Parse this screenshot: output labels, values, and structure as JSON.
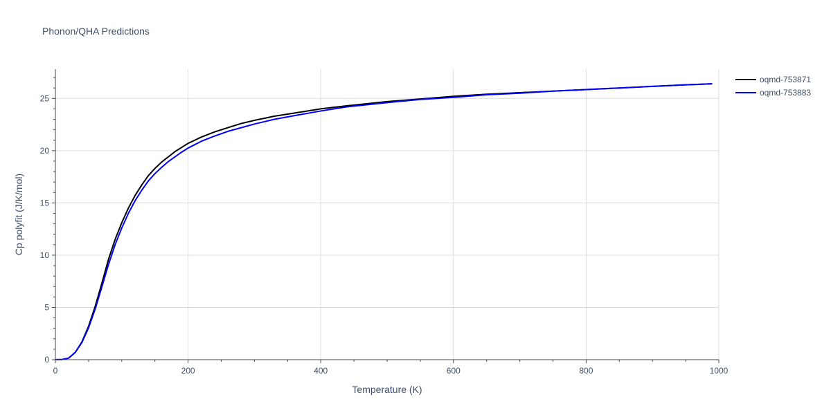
{
  "chart_data": {
    "type": "line",
    "title": "Phonon/QHA Predictions",
    "xlabel": "Temperature (K)",
    "ylabel": "Cp polyfit (J/K/mol)",
    "xlim": [
      0,
      1000
    ],
    "ylim": [
      0,
      27.8
    ],
    "xticks": [
      0,
      200,
      400,
      600,
      800,
      1000
    ],
    "yticks": [
      0,
      5,
      10,
      15,
      20,
      25
    ],
    "grid": true,
    "legend_position": "top-right",
    "series": [
      {
        "name": "oqmd-753871",
        "color": "#000000",
        "x": [
          0,
          10,
          20,
          30,
          40,
          50,
          60,
          70,
          80,
          90,
          100,
          110,
          120,
          130,
          140,
          150,
          160,
          170,
          180,
          190,
          200,
          220,
          240,
          260,
          280,
          300,
          330,
          360,
          400,
          440,
          500,
          550,
          600,
          650,
          700,
          750,
          800,
          850,
          900,
          950,
          990
        ],
        "y": [
          0,
          0.02,
          0.15,
          0.7,
          1.7,
          3.2,
          5.1,
          7.3,
          9.6,
          11.5,
          13.1,
          14.5,
          15.7,
          16.7,
          17.6,
          18.3,
          18.9,
          19.4,
          19.9,
          20.3,
          20.7,
          21.3,
          21.8,
          22.2,
          22.6,
          22.9,
          23.3,
          23.6,
          24.0,
          24.3,
          24.7,
          24.95,
          25.2,
          25.4,
          25.55,
          25.7,
          25.85,
          26.0,
          26.15,
          26.3,
          26.4
        ]
      },
      {
        "name": "oqmd-753883",
        "color": "#0000ff",
        "x": [
          0,
          10,
          20,
          30,
          40,
          50,
          60,
          70,
          80,
          90,
          100,
          110,
          120,
          130,
          140,
          150,
          160,
          170,
          180,
          190,
          200,
          220,
          240,
          260,
          280,
          300,
          330,
          360,
          400,
          440,
          500,
          550,
          600,
          650,
          700,
          750,
          800,
          850,
          900,
          950,
          990
        ],
        "y": [
          0,
          0.02,
          0.15,
          0.7,
          1.65,
          3.05,
          4.85,
          6.95,
          9.1,
          11.0,
          12.6,
          14.0,
          15.2,
          16.2,
          17.1,
          17.8,
          18.4,
          18.95,
          19.4,
          19.85,
          20.25,
          20.9,
          21.4,
          21.85,
          22.2,
          22.55,
          23.0,
          23.35,
          23.8,
          24.2,
          24.6,
          24.9,
          25.1,
          25.35,
          25.5,
          25.7,
          25.85,
          26.0,
          26.15,
          26.3,
          26.4
        ]
      }
    ]
  }
}
